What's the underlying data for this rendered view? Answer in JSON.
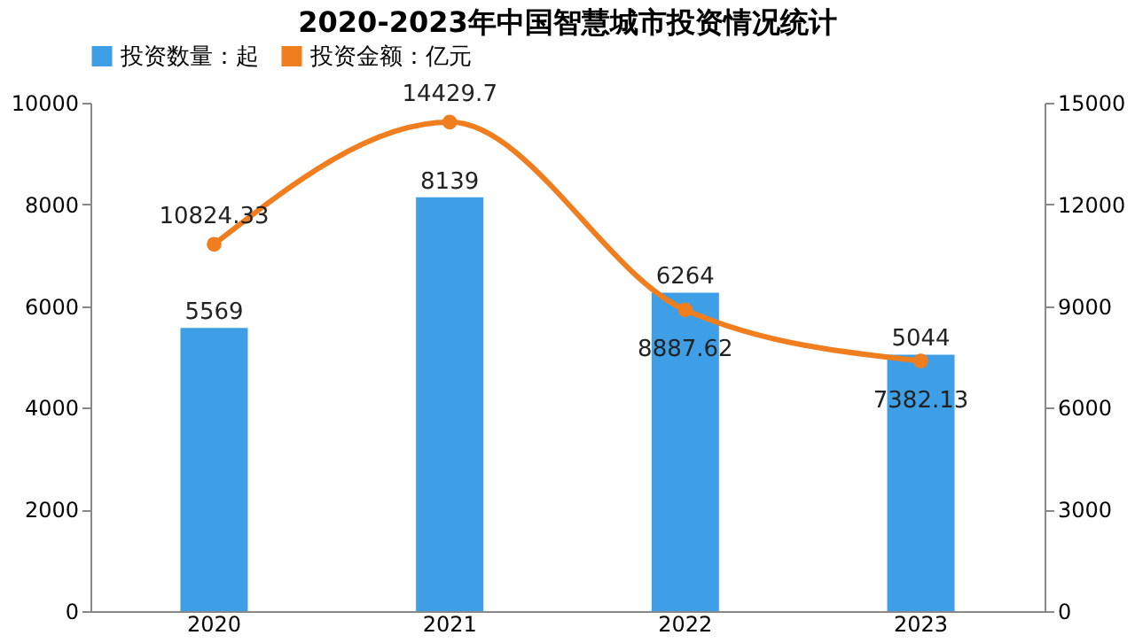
{
  "chart_data": {
    "type": "bar",
    "title": "2020-2023年中国智慧城市投资情况统计",
    "categories": [
      "2020",
      "2021",
      "2022",
      "2023"
    ],
    "series": [
      {
        "name": "投资数量：起",
        "color": "#3f9fe6",
        "values": [
          5569,
          8139,
          6264,
          5044
        ]
      },
      {
        "name": "投资金额：亿元",
        "type": "line",
        "axis": "y2",
        "color": "#f07d1e",
        "values": [
          10824.33,
          14429.7,
          8887.62,
          7382.13
        ]
      }
    ],
    "ylim": [
      0,
      10000
    ],
    "yticks": [
      0,
      2000,
      4000,
      6000,
      8000,
      10000
    ],
    "y2lim": [
      0,
      15000
    ],
    "y2ticks": [
      0,
      3000,
      6000,
      9000,
      12000,
      15000
    ],
    "data_labels": true,
    "legend": "top",
    "marker": "circle",
    "grid": false
  }
}
